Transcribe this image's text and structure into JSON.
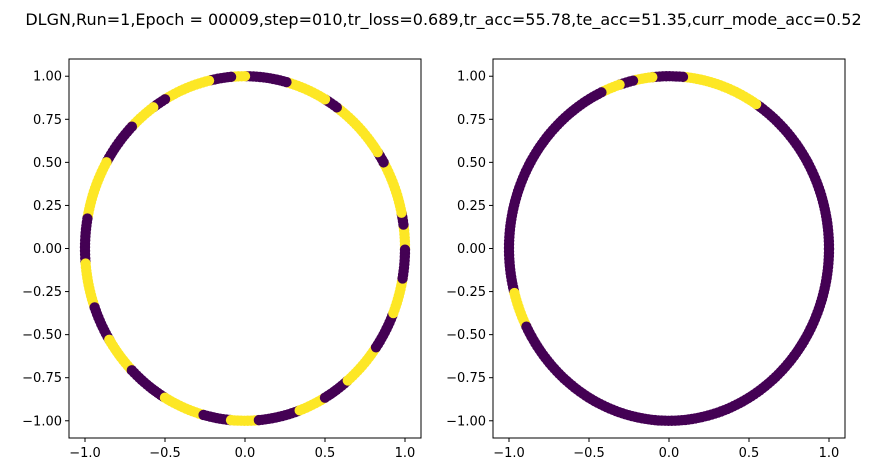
{
  "figure": {
    "title": "DLGN,Run=1,Epoch = 00009,step=010,tr_loss=0.689,tr_acc=55.78,te_acc=51.35,curr_mode_acc=0.52"
  },
  "colors": {
    "class_0": "#440154",
    "class_1": "#fde725",
    "axes": "#000000",
    "background": "#ffffff"
  },
  "chart_data": [
    {
      "type": "scatter",
      "name": "",
      "xlim": [
        -1.1,
        1.1
      ],
      "ylim": [
        -1.1,
        1.1
      ],
      "xticks": [
        -1.0,
        -0.5,
        0.0,
        0.5,
        1.0
      ],
      "yticks": [
        -1.0,
        -0.75,
        -0.5,
        -0.25,
        0.0,
        0.25,
        0.5,
        0.75,
        1.0
      ],
      "xtick_labels": [
        "−1.0",
        "−0.5",
        "0.0",
        "0.5",
        "1.0"
      ],
      "ytick_labels": [
        "−1.00",
        "−0.75",
        "−0.50",
        "−0.25",
        "0.00",
        "0.25",
        "0.50",
        "0.75",
        "1.00"
      ],
      "grid": false,
      "points_on": "unit circle",
      "segments_deg": [
        [
          0,
          8,
          1
        ],
        [
          8,
          12,
          0
        ],
        [
          12,
          30,
          1
        ],
        [
          30,
          34,
          0
        ],
        [
          34,
          55,
          1
        ],
        [
          55,
          60,
          0
        ],
        [
          60,
          75,
          1
        ],
        [
          75,
          90,
          0
        ],
        [
          90,
          95,
          1
        ],
        [
          95,
          103,
          0
        ],
        [
          103,
          120,
          1
        ],
        [
          120,
          125,
          0
        ],
        [
          125,
          135,
          1
        ],
        [
          135,
          150,
          0
        ],
        [
          150,
          170,
          1
        ],
        [
          170,
          185,
          0
        ],
        [
          185,
          200,
          1
        ],
        [
          200,
          212,
          0
        ],
        [
          212,
          225,
          1
        ],
        [
          225,
          240,
          0
        ],
        [
          240,
          255,
          1
        ],
        [
          255,
          265,
          0
        ],
        [
          265,
          275,
          1
        ],
        [
          275,
          290,
          0
        ],
        [
          290,
          300,
          1
        ],
        [
          300,
          310,
          0
        ],
        [
          310,
          325,
          1
        ],
        [
          325,
          338,
          0
        ],
        [
          338,
          350,
          1
        ],
        [
          350,
          360,
          0
        ]
      ]
    },
    {
      "type": "scatter",
      "name": "",
      "xlim": [
        -1.1,
        1.1
      ],
      "ylim": [
        -1.1,
        1.1
      ],
      "xticks": [
        -1.0,
        -0.5,
        0.0,
        0.5,
        1.0
      ],
      "yticks": [
        -1.0,
        -0.75,
        -0.5,
        -0.25,
        0.0,
        0.25,
        0.5,
        0.75,
        1.0
      ],
      "xtick_labels": [
        "−1.0",
        "−0.5",
        "0.0",
        "0.5",
        "1.0"
      ],
      "ytick_labels": [
        "−1.00",
        "−0.75",
        "−0.50",
        "−0.25",
        "0.00",
        "0.25",
        "0.50",
        "0.75",
        "1.00"
      ],
      "grid": false,
      "points_on": "unit circle",
      "segments_deg": [
        [
          0,
          57,
          0
        ],
        [
          57,
          85,
          1
        ],
        [
          85,
          96,
          0
        ],
        [
          96,
          103,
          1
        ],
        [
          103,
          108,
          0
        ],
        [
          108,
          115,
          1
        ],
        [
          115,
          195,
          0
        ],
        [
          195,
          207,
          1
        ],
        [
          207,
          211,
          0
        ],
        [
          211,
          360,
          0
        ]
      ]
    }
  ]
}
